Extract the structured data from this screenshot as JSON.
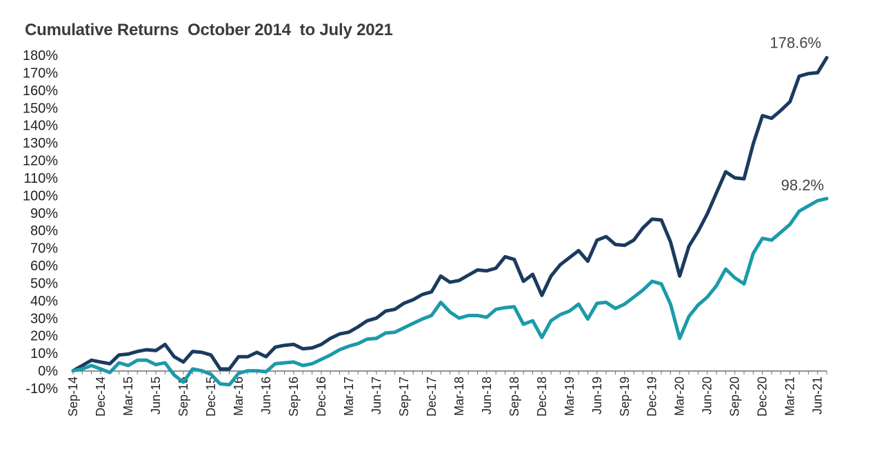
{
  "chart_data": {
    "type": "line",
    "title": "Cumulative Returns  October 2014  to July 2021",
    "xlabel": "",
    "ylabel": "",
    "ylim": [
      -10,
      180
    ],
    "y_ticks": [
      -10,
      0,
      10,
      20,
      30,
      40,
      50,
      60,
      70,
      80,
      90,
      100,
      110,
      120,
      130,
      140,
      150,
      160,
      170,
      180
    ],
    "y_tick_labels": [
      "-10%",
      "0%",
      "10%",
      "20%",
      "30%",
      "40%",
      "50%",
      "60%",
      "70%",
      "80%",
      "90%",
      "100%",
      "110%",
      "120%",
      "130%",
      "140%",
      "150%",
      "160%",
      "170%",
      "180%"
    ],
    "x_tick_labels": [
      "Sep-14",
      "Dec-14",
      "Mar-15",
      "Jun-15",
      "Sep-15",
      "Dec-15",
      "Mar-16",
      "Jun-16",
      "Sep-16",
      "Dec-16",
      "Mar-17",
      "Jun-17",
      "Sep-17",
      "Dec-17",
      "Mar-18",
      "Jun-18",
      "Sep-18",
      "Dec-18",
      "Mar-19",
      "Jun-19",
      "Sep-19",
      "Dec-19",
      "Mar-20",
      "Jun-20",
      "Sep-20",
      "Dec-20",
      "Mar-21",
      "Jun-21"
    ],
    "grid": false,
    "legend": "none",
    "series": [
      {
        "color": "#1b3a5f",
        "end_label": "178.6%",
        "values": [
          0,
          3,
          6,
          5,
          4,
          9,
          9.5,
          11,
          12,
          11.5,
          15,
          8,
          5,
          11,
          10.5,
          9,
          1,
          1,
          8,
          8,
          10.5,
          8,
          13.5,
          14.5,
          15,
          12.5,
          13,
          15,
          18.5,
          21,
          22,
          25,
          28.5,
          30,
          34,
          35,
          38.5,
          40.5,
          43.5,
          45,
          54,
          50.5,
          51.5,
          54.5,
          57.5,
          57,
          58.5,
          65,
          63.5,
          51,
          55,
          43,
          54,
          60.5,
          64.5,
          68.5,
          62.5,
          74.5,
          76.5,
          72,
          71.5,
          74.5,
          81.5,
          86.5,
          86,
          73.5,
          54,
          71,
          79.5,
          89.5,
          101.5,
          113.5,
          110,
          109.5,
          129.5,
          145.5,
          144,
          148.5,
          153.5,
          168,
          169.5,
          170,
          178.6
        ]
      },
      {
        "color": "#1b9aaa",
        "end_label": "98.2%",
        "values": [
          0,
          1,
          3,
          1,
          -1,
          4.5,
          3,
          6,
          6,
          3.5,
          4.5,
          -2.5,
          -6.5,
          1,
          0,
          -2,
          -7.5,
          -8,
          -1.5,
          0,
          0,
          -0.5,
          4,
          4.5,
          5,
          3,
          4,
          6.5,
          9,
          12,
          14,
          15.5,
          18,
          18.5,
          21.5,
          22,
          24.5,
          27,
          29.5,
          31.5,
          39,
          33.5,
          30,
          31.5,
          31.5,
          30.5,
          35,
          36,
          36.5,
          26.5,
          28.5,
          19,
          28.5,
          32,
          34,
          38,
          29.5,
          38.5,
          39,
          35.5,
          38,
          42,
          46,
          51,
          49.5,
          38,
          18.5,
          31,
          37.5,
          42,
          48.5,
          58,
          53,
          49.5,
          67,
          75.5,
          74.5,
          79,
          83.5,
          91,
          94,
          97,
          98.2
        ]
      }
    ]
  }
}
